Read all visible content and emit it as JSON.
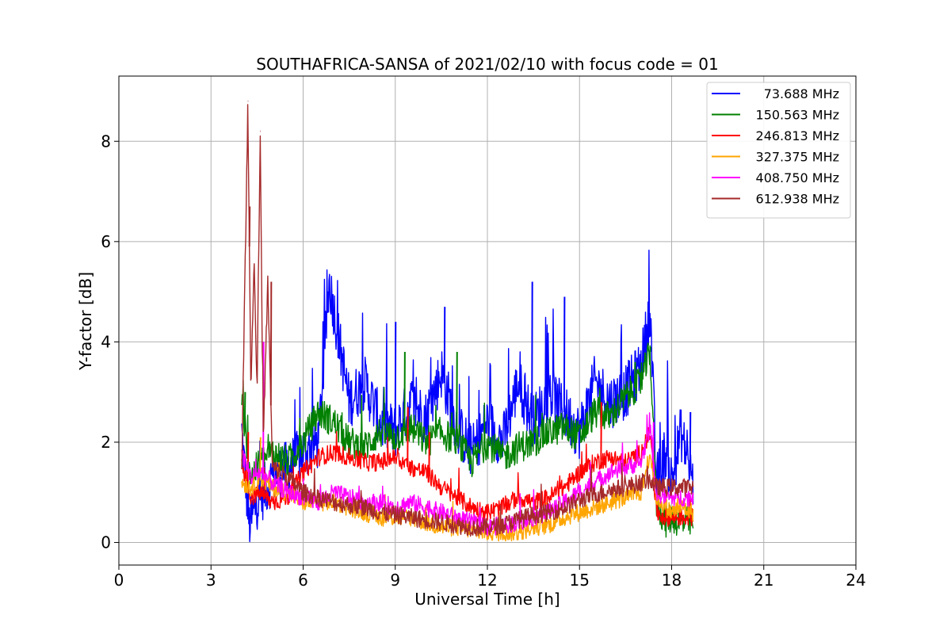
{
  "chart_data": {
    "type": "line",
    "title": "SOUTHAFRICA-SANSA of 2021/02/10 with focus code = 01",
    "xlabel": "Universal Time [h]",
    "ylabel": "Y-factor [dB]",
    "xlim": [
      0,
      24
    ],
    "ylim": [
      -0.45,
      9.3
    ],
    "xticks": [
      0,
      3,
      6,
      9,
      12,
      15,
      18,
      21,
      24
    ],
    "xtick_labels": [
      "0",
      "3",
      "6",
      "9",
      "12",
      "15",
      "18",
      "21",
      "24"
    ],
    "yticks": [
      0,
      2,
      4,
      6,
      8
    ],
    "ytick_labels": [
      "0",
      "2",
      "4",
      "6",
      "8"
    ],
    "grid": true,
    "legend_position": "top-right",
    "series": [
      {
        "name": "73.688 MHz",
        "color": "#0000ff",
        "x": [
          4.0,
          4.25,
          4.5,
          5.0,
          5.5,
          6.0,
          6.5,
          6.85,
          7.5,
          8.0,
          8.5,
          9.0,
          9.5,
          10.0,
          10.5,
          11.0,
          11.5,
          12.0,
          12.5,
          13.0,
          13.5,
          14.0,
          14.5,
          15.0,
          15.5,
          16.0,
          16.5,
          17.0,
          17.3,
          17.5,
          17.8,
          18.0,
          18.3,
          18.7
        ],
        "values": [
          2.2,
          0.3,
          0.8,
          1.3,
          1.5,
          1.8,
          2.0,
          5.2,
          2.8,
          3.2,
          2.4,
          2.2,
          2.8,
          2.5,
          3.4,
          2.3,
          1.8,
          2.4,
          2.0,
          3.2,
          2.4,
          3.0,
          2.6,
          2.2,
          3.2,
          2.8,
          3.0,
          3.5,
          4.7,
          1.2,
          1.8,
          1.2,
          2.2,
          1.2
        ],
        "peaks": [
          [
            6.85,
            5.2
          ],
          [
            13.45,
            5.2
          ],
          [
            17.25,
            4.7
          ],
          [
            10.6,
            4.7
          ],
          [
            14.5,
            4.9
          ],
          [
            9.0,
            4.4
          ],
          [
            18.6,
            2.6
          ]
        ]
      },
      {
        "name": "150.563 MHz",
        "color": "#008000",
        "x": [
          4.0,
          4.3,
          4.6,
          5.0,
          5.5,
          6.0,
          6.5,
          7.0,
          7.5,
          8.0,
          8.5,
          9.0,
          9.5,
          10.0,
          10.5,
          11.0,
          11.5,
          12.0,
          12.5,
          13.0,
          13.5,
          14.0,
          14.5,
          15.0,
          15.5,
          16.0,
          16.5,
          17.0,
          17.3,
          17.5,
          17.8,
          18.0,
          18.3,
          18.7
        ],
        "values": [
          2.8,
          1.3,
          1.6,
          1.8,
          1.6,
          2.0,
          2.6,
          2.4,
          2.0,
          1.9,
          2.2,
          2.1,
          2.3,
          2.0,
          2.2,
          2.0,
          1.6,
          2.0,
          1.7,
          1.9,
          2.0,
          2.2,
          2.3,
          2.1,
          2.6,
          2.5,
          2.9,
          3.2,
          3.8,
          0.8,
          0.4,
          0.5,
          0.4,
          0.4
        ],
        "peaks": [
          [
            4.1,
            3.0
          ],
          [
            9.3,
            3.8
          ],
          [
            11.0,
            3.8
          ],
          [
            16.8,
            3.6
          ],
          [
            17.3,
            3.9
          ]
        ]
      },
      {
        "name": "246.813 MHz",
        "color": "#ff0000",
        "x": [
          4.0,
          4.3,
          4.6,
          5.0,
          5.5,
          6.0,
          6.5,
          7.0,
          7.5,
          8.0,
          8.5,
          9.0,
          9.5,
          10.0,
          10.5,
          11.0,
          11.5,
          12.0,
          12.5,
          13.0,
          13.5,
          14.0,
          14.5,
          15.0,
          15.5,
          16.0,
          16.5,
          17.0,
          17.3,
          17.5,
          17.8,
          18.0,
          18.3,
          18.7
        ],
        "values": [
          1.5,
          0.9,
          1.0,
          0.8,
          0.9,
          1.4,
          1.7,
          1.8,
          1.7,
          1.6,
          1.6,
          1.7,
          1.5,
          1.4,
          1.1,
          0.9,
          0.7,
          0.6,
          0.7,
          0.9,
          0.8,
          0.9,
          1.1,
          1.4,
          1.6,
          1.7,
          1.6,
          1.8,
          2.2,
          0.6,
          0.5,
          0.5,
          0.5,
          0.5
        ],
        "peaks": [
          [
            9.4,
            2.7
          ],
          [
            15.7,
            2.8
          ],
          [
            4.2,
            2.2
          ],
          [
            10.1,
            2.2
          ]
        ]
      },
      {
        "name": "327.375 MHz",
        "color": "#ffa500",
        "x": [
          4.0,
          4.3,
          4.6,
          5.0,
          5.5,
          6.0,
          6.5,
          7.0,
          7.5,
          8.0,
          8.5,
          9.0,
          9.5,
          10.0,
          10.5,
          11.0,
          11.5,
          12.0,
          12.5,
          13.0,
          13.5,
          14.0,
          14.5,
          15.0,
          15.5,
          16.0,
          16.5,
          17.0,
          17.3,
          17.5,
          17.8,
          18.0,
          18.3,
          18.7
        ],
        "values": [
          1.2,
          1.1,
          1.3,
          1.1,
          1.0,
          0.8,
          0.8,
          0.8,
          0.7,
          0.6,
          0.5,
          0.5,
          0.5,
          0.4,
          0.3,
          0.3,
          0.25,
          0.2,
          0.2,
          0.2,
          0.3,
          0.35,
          0.5,
          0.6,
          0.7,
          0.8,
          0.9,
          1.0,
          1.8,
          0.9,
          0.7,
          0.6,
          0.7,
          0.6
        ],
        "peaks": [
          [
            4.6,
            2.1
          ],
          [
            5.2,
            1.6
          ]
        ]
      },
      {
        "name": "408.750 MHz",
        "color": "#ff00ff",
        "x": [
          4.0,
          4.3,
          4.6,
          5.0,
          5.5,
          6.0,
          6.5,
          7.0,
          7.5,
          8.0,
          8.5,
          9.0,
          9.5,
          10.0,
          10.5,
          11.0,
          11.5,
          12.0,
          12.5,
          13.0,
          13.5,
          14.0,
          14.5,
          15.0,
          15.5,
          16.0,
          16.5,
          17.0,
          17.3,
          17.5,
          17.8,
          18.0,
          18.3,
          18.7
        ],
        "values": [
          1.8,
          1.3,
          1.4,
          1.2,
          1.0,
          0.9,
          0.8,
          1.0,
          0.9,
          0.8,
          0.8,
          0.7,
          0.8,
          0.7,
          0.6,
          0.5,
          0.4,
          0.3,
          0.35,
          0.4,
          0.5,
          0.6,
          0.8,
          1.0,
          1.2,
          1.4,
          1.5,
          1.6,
          2.3,
          1.0,
          0.9,
          0.9,
          0.9,
          0.9
        ],
        "peaks": [
          [
            4.7,
            4.0
          ],
          [
            17.4,
            2.4
          ]
        ]
      },
      {
        "name": "612.938 MHz",
        "color": "#a52a2a",
        "x": [
          4.0,
          4.2,
          4.3,
          4.4,
          4.5,
          4.6,
          4.7,
          4.85,
          5.0,
          5.5,
          6.0,
          6.5,
          7.0,
          7.5,
          8.0,
          8.5,
          9.0,
          9.5,
          10.0,
          10.5,
          11.0,
          11.5,
          12.0,
          12.5,
          13.0,
          13.5,
          14.0,
          14.5,
          15.0,
          15.5,
          16.0,
          16.5,
          17.0,
          17.3,
          17.5,
          17.8,
          18.0,
          18.3,
          18.7
        ],
        "values": [
          1.4,
          8.8,
          3.0,
          5.7,
          3.0,
          8.2,
          2.0,
          5.2,
          1.5,
          1.3,
          1.0,
          0.9,
          0.8,
          0.75,
          0.7,
          0.6,
          0.55,
          0.5,
          0.45,
          0.4,
          0.35,
          0.3,
          0.3,
          0.35,
          0.45,
          0.55,
          0.6,
          0.7,
          0.85,
          0.95,
          1.05,
          1.1,
          1.2,
          1.25,
          1.1,
          1.1,
          1.1,
          1.1,
          1.1
        ],
        "peaks": [
          [
            4.2,
            8.8
          ],
          [
            4.6,
            8.2
          ],
          [
            4.25,
            6.7
          ],
          [
            4.95,
            5.2
          ]
        ]
      }
    ]
  }
}
